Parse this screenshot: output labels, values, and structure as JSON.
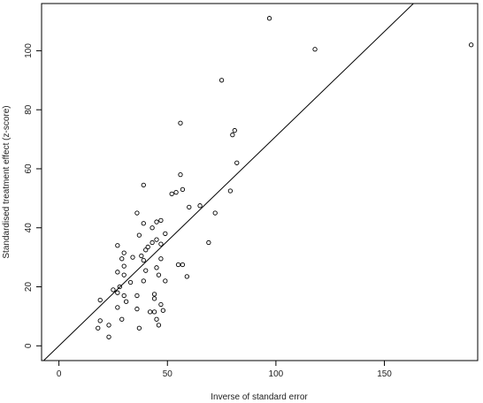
{
  "chart_data": {
    "type": "scatter",
    "xlabel": "Inverse of standard error",
    "ylabel": "Standardised treatment effect (z-score)",
    "xlim": [
      -8,
      193
    ],
    "ylim": [
      -5,
      116
    ],
    "xticks": [
      0,
      50,
      100,
      150
    ],
    "yticks": [
      0,
      20,
      40,
      60,
      80,
      100
    ],
    "grid": false,
    "regression_line": {
      "slope": 0.71,
      "intercept": 0
    },
    "points": [
      {
        "x": 97,
        "y": 111
      },
      {
        "x": 118,
        "y": 100.5
      },
      {
        "x": 190,
        "y": 102
      },
      {
        "x": 75,
        "y": 90
      },
      {
        "x": 56,
        "y": 75.5
      },
      {
        "x": 81,
        "y": 73
      },
      {
        "x": 80,
        "y": 71.5
      },
      {
        "x": 82,
        "y": 62
      },
      {
        "x": 56,
        "y": 58
      },
      {
        "x": 39,
        "y": 54.5
      },
      {
        "x": 54,
        "y": 52
      },
      {
        "x": 52,
        "y": 51.5
      },
      {
        "x": 57,
        "y": 53
      },
      {
        "x": 79,
        "y": 52.5
      },
      {
        "x": 60,
        "y": 47
      },
      {
        "x": 65,
        "y": 47.5
      },
      {
        "x": 72,
        "y": 45
      },
      {
        "x": 36,
        "y": 45
      },
      {
        "x": 47,
        "y": 42.5
      },
      {
        "x": 45,
        "y": 42
      },
      {
        "x": 39,
        "y": 41.5
      },
      {
        "x": 43,
        "y": 40
      },
      {
        "x": 37,
        "y": 37.5
      },
      {
        "x": 49,
        "y": 38
      },
      {
        "x": 45,
        "y": 36
      },
      {
        "x": 43,
        "y": 35
      },
      {
        "x": 47,
        "y": 34.5
      },
      {
        "x": 41,
        "y": 33.5
      },
      {
        "x": 27,
        "y": 34
      },
      {
        "x": 69,
        "y": 35
      },
      {
        "x": 40,
        "y": 32.5
      },
      {
        "x": 30,
        "y": 31.5
      },
      {
        "x": 38,
        "y": 30.5
      },
      {
        "x": 34,
        "y": 30
      },
      {
        "x": 29,
        "y": 29.5
      },
      {
        "x": 47,
        "y": 29.5
      },
      {
        "x": 39,
        "y": 29
      },
      {
        "x": 55,
        "y": 27.5
      },
      {
        "x": 57,
        "y": 27.5
      },
      {
        "x": 30,
        "y": 27
      },
      {
        "x": 45,
        "y": 26.5
      },
      {
        "x": 40,
        "y": 25.5
      },
      {
        "x": 27,
        "y": 25
      },
      {
        "x": 30,
        "y": 24
      },
      {
        "x": 46,
        "y": 24
      },
      {
        "x": 59,
        "y": 23.5
      },
      {
        "x": 39,
        "y": 22
      },
      {
        "x": 49,
        "y": 22
      },
      {
        "x": 33,
        "y": 21.5
      },
      {
        "x": 25,
        "y": 19
      },
      {
        "x": 28,
        "y": 20
      },
      {
        "x": 27,
        "y": 18
      },
      {
        "x": 44,
        "y": 17.5
      },
      {
        "x": 30,
        "y": 17
      },
      {
        "x": 36,
        "y": 17
      },
      {
        "x": 44,
        "y": 16
      },
      {
        "x": 19,
        "y": 15.5
      },
      {
        "x": 31,
        "y": 15
      },
      {
        "x": 47,
        "y": 14
      },
      {
        "x": 27,
        "y": 13
      },
      {
        "x": 36,
        "y": 12.5
      },
      {
        "x": 42,
        "y": 11.5
      },
      {
        "x": 44,
        "y": 11.5
      },
      {
        "x": 48,
        "y": 12
      },
      {
        "x": 29,
        "y": 9
      },
      {
        "x": 19,
        "y": 8.5
      },
      {
        "x": 45,
        "y": 9
      },
      {
        "x": 23,
        "y": 7
      },
      {
        "x": 18,
        "y": 6
      },
      {
        "x": 37,
        "y": 6
      },
      {
        "x": 46,
        "y": 7
      },
      {
        "x": 23,
        "y": 3
      }
    ]
  }
}
